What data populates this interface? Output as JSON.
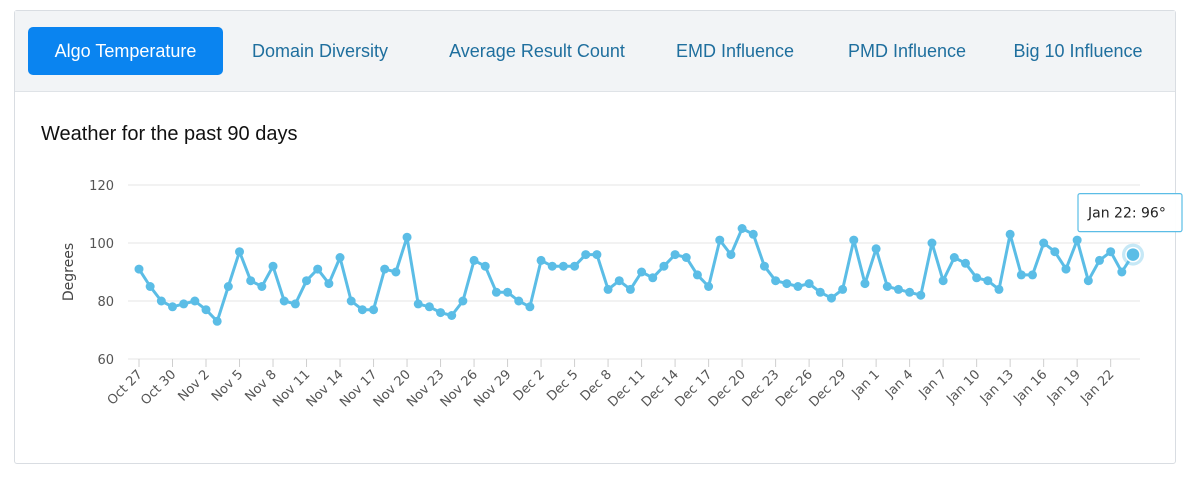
{
  "tabs": [
    {
      "label": "Algo Temperature",
      "active": true
    },
    {
      "label": "Domain Diversity",
      "active": false
    },
    {
      "label": "Average Result Count",
      "active": false
    },
    {
      "label": "EMD Influence",
      "active": false
    },
    {
      "label": "PMD Influence",
      "active": false
    },
    {
      "label": "Big 10 Influence",
      "active": false
    }
  ],
  "colors": {
    "accent": "#0a84f0",
    "tab_text": "#1f6f9e",
    "series": "#5bbde6",
    "grid": "#e6e6e6"
  },
  "tooltip": {
    "text": "Jan 22: 96°"
  },
  "chart_data": {
    "type": "line",
    "title": "Weather for the past 90 days",
    "ylabel": "Degrees",
    "xlabel": "",
    "ylim": [
      60,
      120
    ],
    "yticks": [
      60,
      80,
      100,
      120
    ],
    "grid": true,
    "x_tick_labels": [
      "Oct 27",
      "Oct 30",
      "Nov 2",
      "Nov 5",
      "Nov 8",
      "Nov 11",
      "Nov 14",
      "Nov 17",
      "Nov 20",
      "Nov 23",
      "Nov 26",
      "Nov 29",
      "Dec 2",
      "Dec 5",
      "Dec 8",
      "Dec 11",
      "Dec 14",
      "Dec 17",
      "Dec 20",
      "Dec 23",
      "Dec 26",
      "Dec 29",
      "Jan 1",
      "Jan 4",
      "Jan 7",
      "Jan 10",
      "Jan 13",
      "Jan 16",
      "Jan 19",
      "Jan 22"
    ],
    "x_start": "Oct 27",
    "x_end": "Jan 22",
    "series": [
      {
        "values": [
          91,
          85,
          80,
          78,
          79,
          80,
          77,
          73,
          85,
          97,
          87,
          85,
          92,
          80,
          79,
          87,
          91,
          86,
          95,
          80,
          77,
          77,
          91,
          90,
          102,
          79,
          78,
          76,
          75,
          80,
          94,
          92,
          83,
          83,
          80,
          78,
          94,
          92,
          92,
          92,
          96,
          96,
          84,
          87,
          84,
          90,
          88,
          92,
          96,
          95,
          89,
          85,
          101,
          96,
          105,
          103,
          92,
          87,
          86,
          85,
          86,
          83,
          81,
          84,
          101,
          86,
          98,
          85,
          84,
          83,
          82,
          100,
          87,
          95,
          93,
          88,
          87,
          84,
          103,
          89,
          89,
          100,
          97,
          91,
          101,
          87,
          94,
          97,
          90,
          96
        ]
      }
    ]
  }
}
